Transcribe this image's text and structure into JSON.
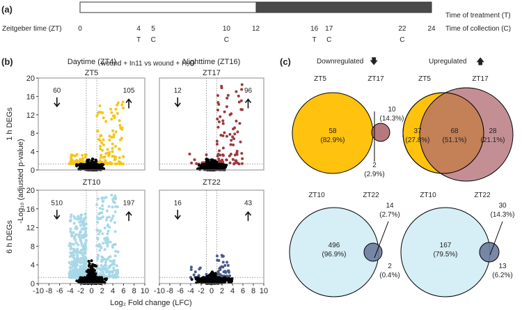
{
  "panel_a": {
    "label": "(a)",
    "zt_label": "Zeitgeber time (ZT)",
    "legend_treatment": "Time of treatment (T)",
    "legend_collection": "Time of collection (C)",
    "ticks": [
      {
        "zt": 0,
        "label": "0",
        "mark": ""
      },
      {
        "zt": 4,
        "label": "4",
        "mark": "T"
      },
      {
        "zt": 5,
        "label": "5",
        "mark": "C"
      },
      {
        "zt": 10,
        "label": "10",
        "mark": "C"
      },
      {
        "zt": 12,
        "label": "12",
        "mark": ""
      },
      {
        "zt": 16,
        "label": "16",
        "mark": "T"
      },
      {
        "zt": 17,
        "label": "17",
        "mark": "C"
      },
      {
        "zt": 22,
        "label": "22",
        "mark": "C"
      },
      {
        "zt": 24,
        "label": "24",
        "mark": ""
      }
    ],
    "light_period": [
      0,
      12
    ],
    "dark_period": [
      12,
      24
    ],
    "comparison": "wound + In11 vs wound + H₂O",
    "colors": {
      "light": "#ffffff",
      "dark": "#4a4a4a"
    }
  },
  "panel_b": {
    "label": "(b)",
    "col_titles": [
      "Daytime (ZT4)",
      "Nighttime (ZT16)"
    ],
    "row_labels": [
      "1 h DEGs",
      "6 h DEGs"
    ],
    "ylabel": "-Log₁₀ (adjusted p-value)",
    "xlabel": "Log₂ Fold change (LFC)"
  },
  "chart_data": [
    {
      "type": "scatter",
      "title": "ZT5",
      "down_count": "60",
      "up_count": "105",
      "color": "#f5c518",
      "xlim": [
        -10,
        10
      ],
      "ylim": [
        0,
        20
      ],
      "xticks": [
        -10,
        -8,
        -6,
        -4,
        -2,
        0,
        2,
        4,
        6,
        8,
        10
      ],
      "yticks": [
        0,
        4,
        8,
        12,
        16,
        20
      ],
      "lfc_threshold": 1,
      "p_threshold": 1.3,
      "max_up_y": 15,
      "max_down_y": 3.8
    },
    {
      "type": "scatter",
      "title": "ZT17",
      "down_count": "12",
      "up_count": "96",
      "color": "#9c3a3e",
      "xlim": [
        -10,
        10
      ],
      "ylim": [
        0,
        20
      ],
      "lfc_threshold": 1,
      "p_threshold": 1.3,
      "max_up_y": 19.3,
      "max_down_y": 3.5
    },
    {
      "type": "scatter",
      "title": "ZT10",
      "down_count": "510",
      "up_count": "197",
      "color": "#a8d8e8",
      "xlim": [
        -10,
        10
      ],
      "ylim": [
        0,
        20
      ],
      "lfc_threshold": 1,
      "p_threshold": 1.3,
      "max_up_y": 19,
      "max_down_y": 15
    },
    {
      "type": "scatter",
      "title": "ZT22",
      "down_count": "16",
      "up_count": "43",
      "color": "#4a5a8c",
      "xlim": [
        -10,
        10
      ],
      "ylim": [
        0,
        20
      ],
      "lfc_threshold": 1,
      "p_threshold": 1.3,
      "max_up_y": 6.3,
      "max_down_y": 4.5
    }
  ],
  "panel_c": {
    "label": "(c)",
    "down_title": "Downregulated",
    "up_title": "Upregulated",
    "venns": [
      {
        "a": "ZT5",
        "b": "ZT17",
        "only_a": "58",
        "only_a_pct": "(82.9%)",
        "only_b": "10",
        "only_b_pct": "(14.3%)",
        "both": "2",
        "both_pct": "(2.9%)",
        "color_a": "#ffc20e",
        "color_b": "#b06a70"
      },
      {
        "a": "ZT5",
        "b": "ZT17",
        "only_a": "37",
        "only_a_pct": "(27.8%)",
        "only_b": "28",
        "only_b_pct": "(21.1%)",
        "both": "68",
        "both_pct": "(51.1%)",
        "color_a": "#ffc20e",
        "color_b": "#b06a70"
      },
      {
        "a": "ZT10",
        "b": "ZT22",
        "only_a": "496",
        "only_a_pct": "(96.9%)",
        "only_b": "2",
        "only_b_pct": "(0.4%)",
        "both": "14",
        "both_pct": "(2.7%)",
        "color_a": "#d6eef5",
        "color_b": "#6c7a9c"
      },
      {
        "a": "ZT10",
        "b": "ZT22",
        "only_a": "167",
        "only_a_pct": "(79.5%)",
        "only_b": "13",
        "only_b_pct": "(6.2%)",
        "both": "30",
        "both_pct": "(14.3%)",
        "color_a": "#d6eef5",
        "color_b": "#6c7a9c"
      }
    ]
  }
}
